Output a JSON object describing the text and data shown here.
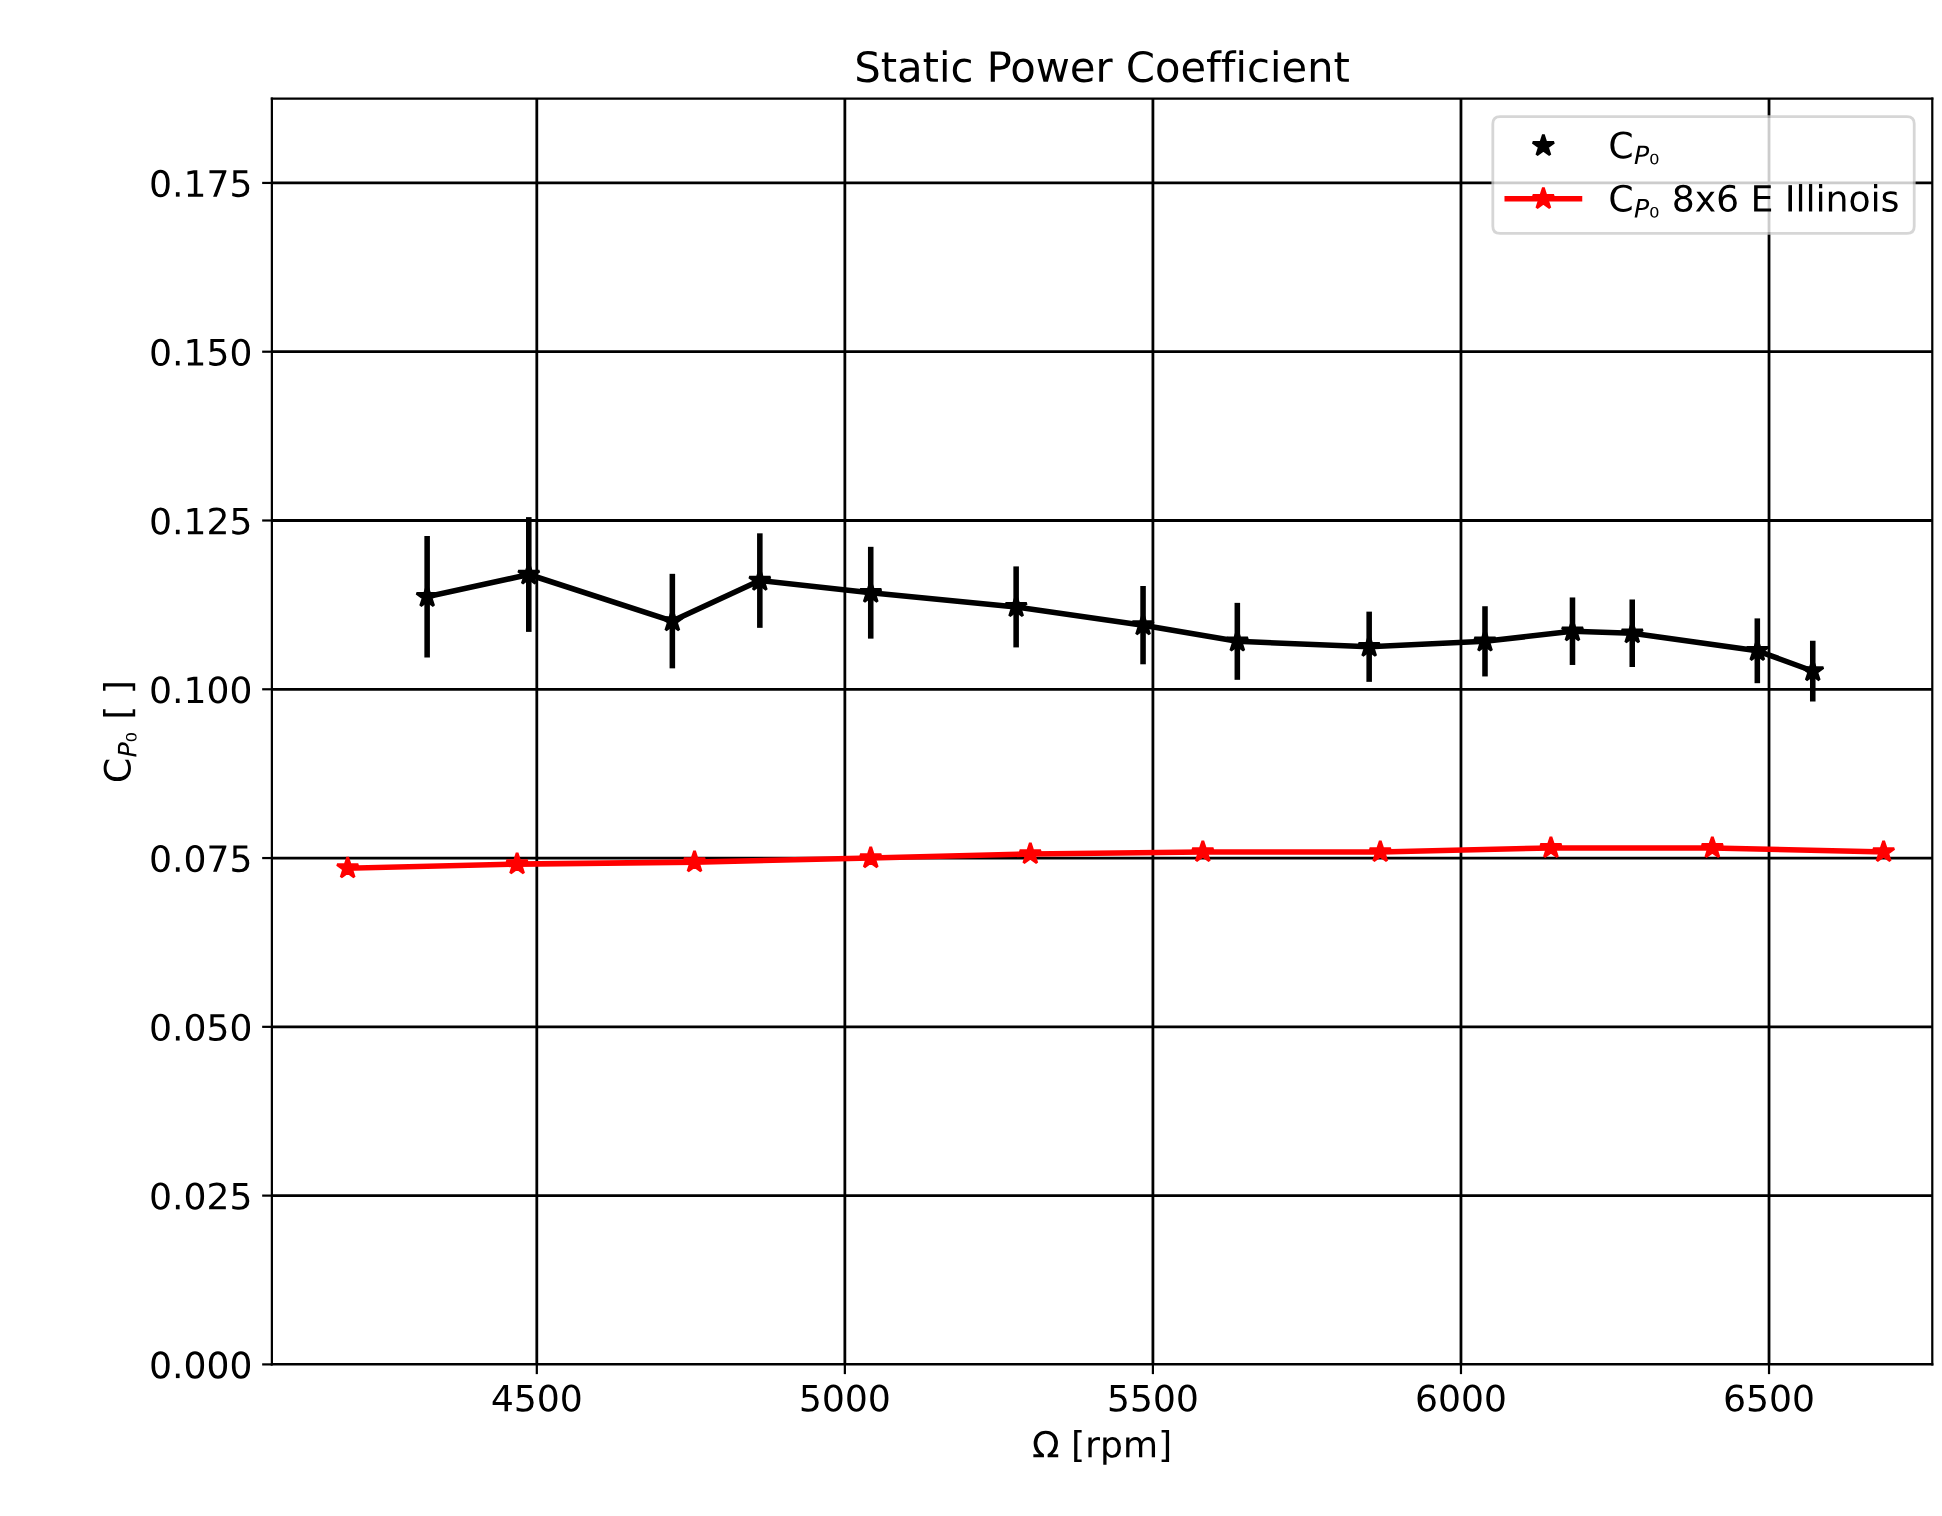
{
  "chart_data": {
    "type": "line",
    "title": "Static Power Coefficient",
    "xlabel": "Ω [rpm]",
    "ylabel": "C$_{P₀}$ [ ]",
    "xlim": [
      4070,
      6765
    ],
    "xticks": [
      4500,
      5000,
      5500,
      6000,
      6500
    ],
    "ylim": [
      0,
      0.1875
    ],
    "yticks": [
      {
        "value": 0,
        "label": "0.000"
      },
      {
        "value": 0.025,
        "label": "0.025"
      },
      {
        "value": 0.05,
        "label": "0.050"
      },
      {
        "value": 0.075,
        "label": "0.075"
      },
      {
        "value": 0.1,
        "label": "0.100"
      },
      {
        "value": 0.125,
        "label": "0.125"
      },
      {
        "value": 0.15,
        "label": "0.150"
      },
      {
        "value": 0.175,
        "label": "0.175"
      }
    ],
    "grid": true,
    "legend": "top right",
    "marker": "star",
    "line_style": "solid",
    "series": [
      {
        "name": "C$_{P₀}$",
        "color": "#000000",
        "x": [
          4322,
          4487,
          4720,
          4862,
          5042,
          5278,
          5484,
          5637,
          5851,
          6039,
          6181,
          6278,
          6481,
          6571
        ],
        "values": [
          0.1137,
          0.117,
          0.1101,
          0.1161,
          0.1143,
          0.1122,
          0.1095,
          0.1071,
          0.1063,
          0.1071,
          0.1086,
          0.1083,
          0.1057,
          0.1027
        ],
        "errors": [
          0.009,
          0.0085,
          0.007,
          0.007,
          0.0068,
          0.006,
          0.0058,
          0.0057,
          0.0052,
          0.0052,
          0.005,
          0.005,
          0.0048,
          0.0045
        ]
      },
      {
        "name": "C$_{P₀}$ 8x6 E Illinois",
        "color": "#ff0000",
        "x": [
          4193,
          4468,
          4756,
          5042,
          5301,
          5581,
          5869,
          6146,
          6408,
          6686
        ],
        "values": [
          0.0735,
          0.0741,
          0.0744,
          0.075,
          0.0756,
          0.0759,
          0.0759,
          0.0765,
          0.0765,
          0.0759
        ]
      }
    ]
  }
}
